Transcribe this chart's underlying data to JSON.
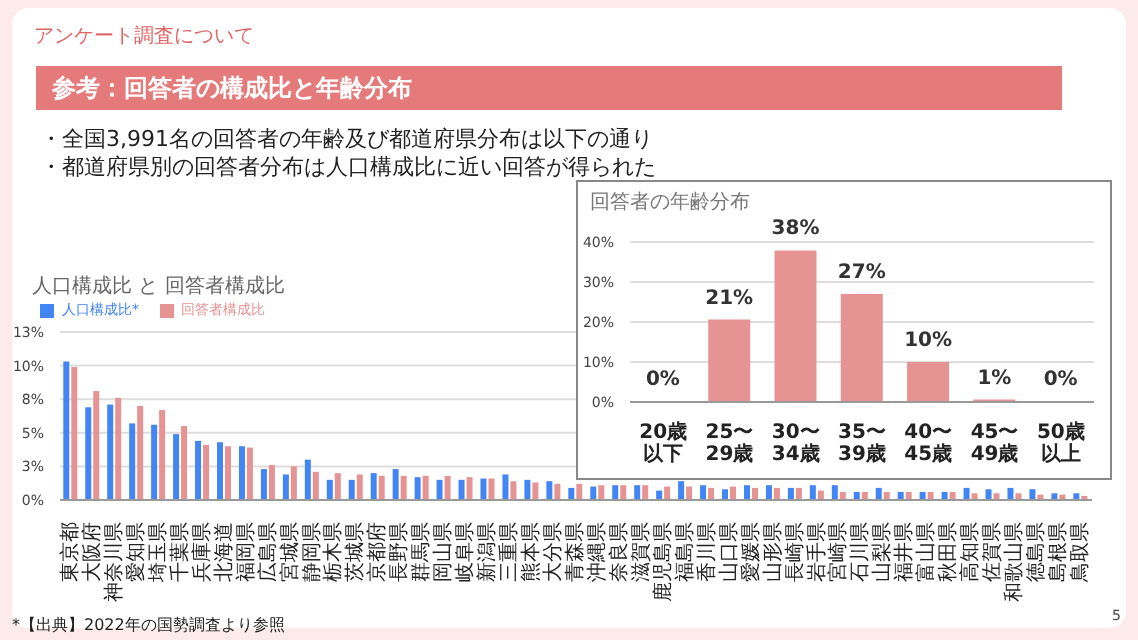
{
  "chart_data": [
    {
      "type": "bar",
      "title": "人口構成比 と 回答者構成比",
      "annotations": [
        "アンケート調査について",
        "参考：回答者の構成比と年齢分布",
        "・全国3,991名の回答者の年齢及び都道府県分布は以下の通り",
        "・都道府県別の回答者分布は人口構成比に近い回答が得られた",
        "*【出典】2022年の国勢調査より参照",
        "5"
      ],
      "categories": [
        "東京都",
        "大阪府",
        "神奈川県",
        "愛知県",
        "埼玉県",
        "千葉県",
        "兵庫県",
        "北海道",
        "福岡県",
        "広島県",
        "宮城県",
        "静岡県",
        "栃木県",
        "茨城県",
        "京都府",
        "長野県",
        "群馬県",
        "岡山県",
        "岐阜県",
        "新潟県",
        "三重県",
        "熊本県",
        "大分県",
        "青森県",
        "沖縄県",
        "奈良県",
        "滋賀県",
        "鹿児島県",
        "福島県",
        "香川県",
        "山口県",
        "愛媛県",
        "山形県",
        "長崎県",
        "岩手県",
        "宮崎県",
        "石川県",
        "山梨県",
        "福井県",
        "富山県",
        "秋田県",
        "高知県",
        "佐賀県",
        "和歌山県",
        "徳島県",
        "島根県",
        "鳥取県"
      ],
      "series": [
        {
          "name": "人口構成比*",
          "color": "#4285f4",
          "values": [
            10.3,
            6.9,
            7.1,
            5.7,
            5.6,
            4.9,
            4.4,
            4.3,
            4.0,
            2.3,
            1.9,
            3.0,
            1.5,
            1.5,
            2.0,
            2.3,
            1.7,
            1.5,
            1.5,
            1.6,
            1.9,
            1.5,
            1.4,
            0.9,
            1.0,
            1.1,
            1.1,
            0.7,
            1.4,
            1.1,
            0.8,
            1.1,
            1.1,
            0.9,
            1.1,
            1.1,
            0.6,
            0.9,
            0.6,
            0.6,
            0.6,
            0.9,
            0.8,
            0.9,
            0.8,
            0.5,
            0.5
          ]
        },
        {
          "name": "回答者構成比",
          "color": "#e69393",
          "values": [
            9.9,
            8.1,
            7.6,
            7.0,
            6.7,
            5.5,
            4.1,
            4.0,
            3.9,
            2.6,
            2.5,
            2.1,
            2.0,
            1.9,
            1.8,
            1.8,
            1.8,
            1.8,
            1.7,
            1.6,
            1.4,
            1.3,
            1.2,
            1.2,
            1.1,
            1.1,
            1.1,
            1.0,
            1.0,
            0.9,
            1.0,
            0.9,
            0.9,
            0.9,
            0.7,
            0.6,
            0.6,
            0.6,
            0.6,
            0.6,
            0.6,
            0.5,
            0.5,
            0.5,
            0.4,
            0.4,
            0.3
          ]
        }
      ],
      "ylim": [
        0,
        12.5
      ],
      "yticks": [
        {
          "value": 0,
          "label": "0%"
        },
        {
          "value": 2.5,
          "label": "3%"
        },
        {
          "value": 5,
          "label": "5%"
        },
        {
          "value": 7.5,
          "label": "8%"
        },
        {
          "value": 10,
          "label": "10%"
        },
        {
          "value": 12.5,
          "label": "13%"
        }
      ],
      "grid": "y",
      "legend": "top left"
    },
    {
      "type": "bar",
      "title": "回答者の年齢分布",
      "categories": [
        "20歳以下",
        "25〜29歳",
        "30〜34歳",
        "35〜39歳",
        "40〜45歳",
        "45〜49歳",
        "50歳以上"
      ],
      "values": [
        0.2,
        20.6,
        37.9,
        27,
        10,
        0.6,
        0.2
      ],
      "color": "#e69393",
      "value_labels": [
        "0%",
        "21%",
        "38%",
        "27%",
        "10%",
        "1%",
        "0%"
      ],
      "ylim": [
        0,
        40
      ],
      "yticks": [
        {
          "value": 0,
          "label": "0%"
        },
        {
          "value": 10,
          "label": "10%"
        },
        {
          "value": 20,
          "label": "20%"
        },
        {
          "value": 30,
          "label": "30%"
        },
        {
          "value": 40,
          "label": "40%"
        }
      ],
      "grid": "y"
    }
  ]
}
